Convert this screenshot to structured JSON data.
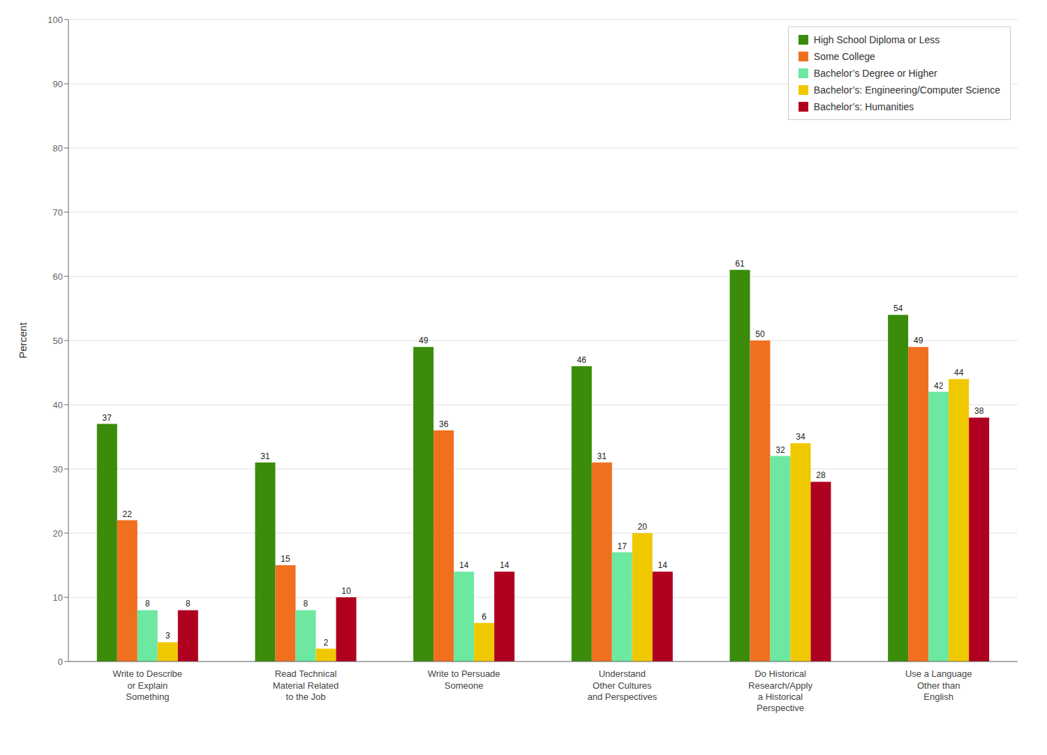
{
  "chart_data": {
    "type": "bar",
    "categories": [
      "Write to Describe\nor Explain\nSomething",
      "Read Technical\nMaterial Related\nto the Job",
      "Write to Persuade\nSomeone",
      "Understand\nOther Cultures\nand Perspectives",
      "Do Historical\nResearch/Apply\na Historical\nPerspective",
      "Use a Language\nOther than\nEnglish"
    ],
    "series": [
      {
        "name": "High School Diploma or Less",
        "color": "#3a8c0a",
        "values": [
          37,
          31,
          49,
          46,
          61,
          54
        ]
      },
      {
        "name": "Some College",
        "color": "#f07020",
        "values": [
          22,
          15,
          36,
          31,
          50,
          49
        ]
      },
      {
        "name": "Bachelor’s Degree or Higher",
        "color": "#6de8a0",
        "values": [
          8,
          8,
          14,
          17,
          32,
          42
        ]
      },
      {
        "name": "Bachelor’s: Engineering/Computer Science",
        "color": "#f0c800",
        "values": [
          3,
          2,
          6,
          20,
          34,
          44
        ]
      },
      {
        "name": "Bachelor’s: Humanities",
        "color": "#b00020",
        "values": [
          8,
          10,
          14,
          14,
          28,
          38
        ]
      }
    ],
    "ylabel": "Percent",
    "ylim": [
      0,
      100
    ],
    "yticks": [
      0,
      10,
      20,
      30,
      40,
      50,
      60,
      70,
      80,
      90,
      100
    ],
    "grid": true,
    "legend": "upper right",
    "data_labels": true
  }
}
